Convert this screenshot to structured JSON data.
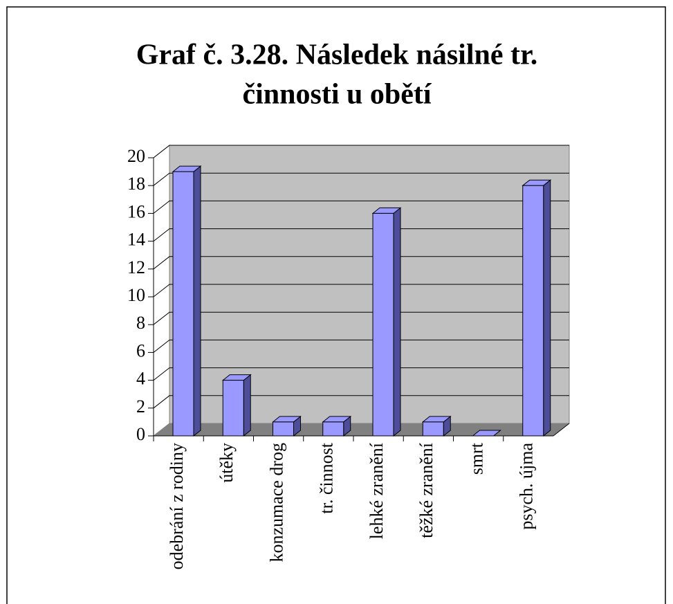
{
  "chart_data": {
    "type": "bar3d",
    "title": [
      "Graf č. 3.28. Následek násilné tr.",
      "činnosti u obětí"
    ],
    "categories": [
      "odebrání z rodiny",
      "útěky",
      "konzumace drog",
      "tr. činnost",
      "lehké zranění",
      "těžké zranění",
      "smrt",
      "psych. újma"
    ],
    "values": [
      19,
      4,
      1,
      1,
      16,
      1,
      0,
      18
    ],
    "color": "#9999ff",
    "ylim": [
      0,
      20
    ],
    "yticks": [
      0,
      2,
      4,
      6,
      8,
      10,
      12,
      14,
      16,
      18,
      20
    ],
    "grid": true
  }
}
